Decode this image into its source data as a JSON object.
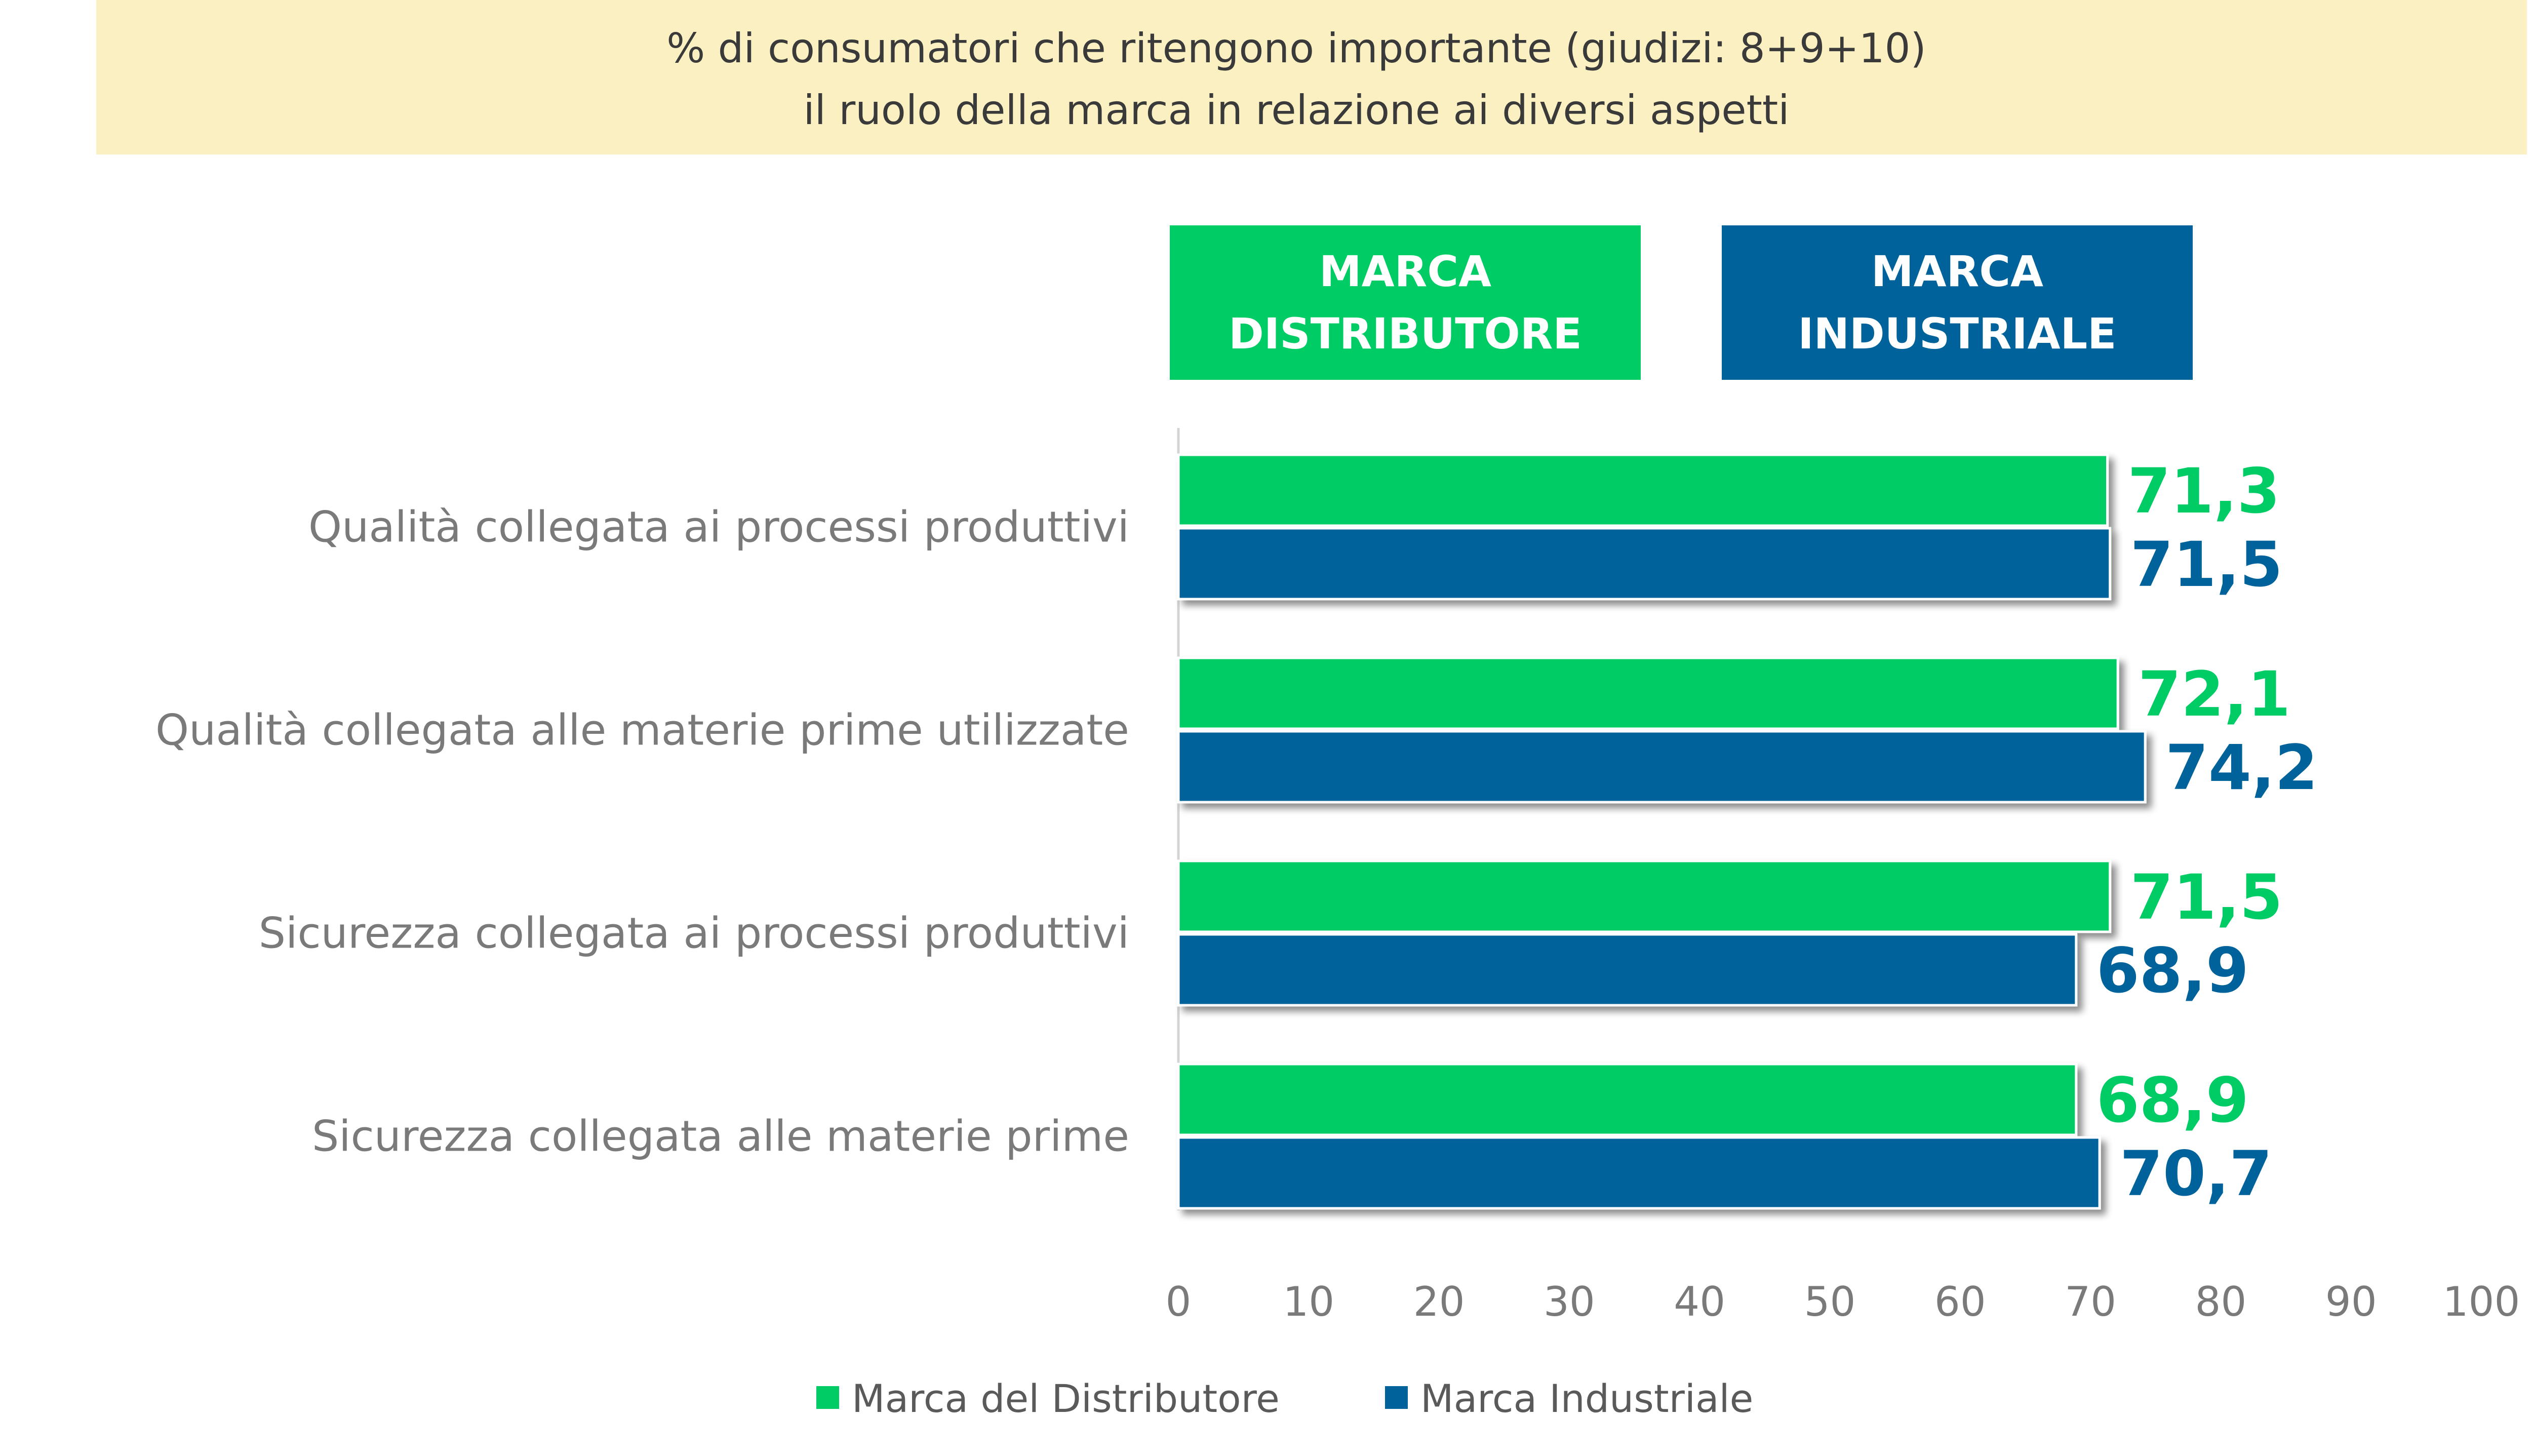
{
  "title": {
    "line1": "% di consumatori che ritengono importante (giudizi: 8+9+10)",
    "line2": "il ruolo della marca in relazione ai diversi aspetti"
  },
  "headers": [
    {
      "line1": "MARCA",
      "line2": "DISTRIBUTORE",
      "color": "#00CC66"
    },
    {
      "line1": "MARCA",
      "line2": "INDUSTRIALE",
      "color": "#00629B"
    }
  ],
  "colors": {
    "distributore": "#00CC66",
    "industriale": "#00629B",
    "banner": "#FAF0C1"
  },
  "chart_data": {
    "type": "bar",
    "orientation": "horizontal",
    "categories": [
      "Qualità collegata ai processi produttivi",
      "Qualità collegata alle materie prime utilizzate",
      "Sicurezza collegata ai processi produttivi",
      "Sicurezza collegata alle materie prime"
    ],
    "series": [
      {
        "name": "Marca del Distributore",
        "color": "#00CC66",
        "values": [
          71.3,
          72.1,
          71.5,
          68.9
        ],
        "labels": [
          "71,3",
          "72,1",
          "71,5",
          "68,9"
        ]
      },
      {
        "name": "Marca Industriale",
        "color": "#00629B",
        "values": [
          71.5,
          74.2,
          68.9,
          70.7
        ],
        "labels": [
          "71,5",
          "74,2",
          "68,9",
          "70,7"
        ]
      }
    ],
    "xlim": [
      0,
      100
    ],
    "xticks": [
      "0",
      "10",
      "20",
      "30",
      "40",
      "50",
      "60",
      "70",
      "80",
      "90",
      "100"
    ],
    "legend_position": "bottom",
    "grid": false
  }
}
